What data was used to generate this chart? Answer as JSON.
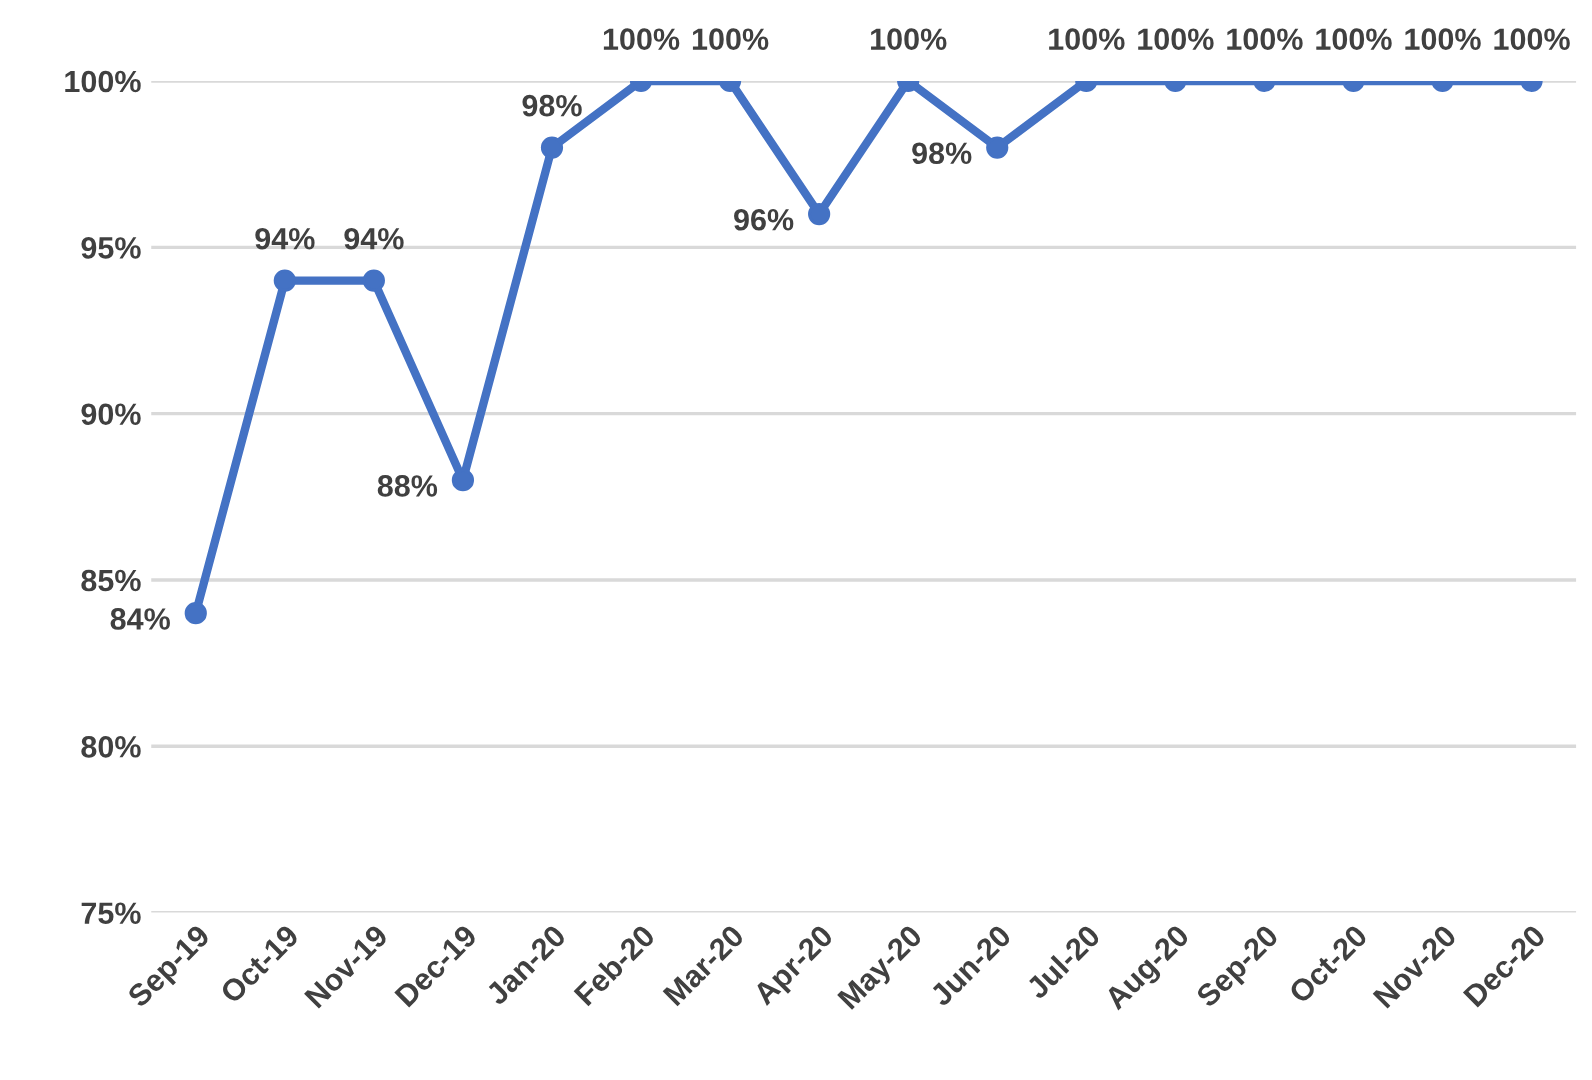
{
  "chart_data": {
    "type": "line",
    "categories": [
      "Sep-19",
      "Oct-19",
      "Nov-19",
      "Dec-19",
      "Jan-20",
      "Feb-20",
      "Mar-20",
      "Apr-20",
      "May-20",
      "Jun-20",
      "Jul-20",
      "Aug-20",
      "Sep-20",
      "Oct-20",
      "Nov-20",
      "Dec-20"
    ],
    "series": [
      {
        "color": "#4472c4",
        "values": [
          84,
          94,
          94,
          88,
          98,
          100,
          100,
          96,
          100,
          98,
          100,
          100,
          100,
          100,
          100,
          100
        ],
        "value_labels": [
          "84%",
          "94%",
          "94%",
          "88%",
          "98%",
          "100%",
          "100%",
          "96%",
          "100%",
          "98%",
          "100%",
          "100%",
          "100%",
          "100%",
          "100%",
          "100%"
        ]
      }
    ],
    "ylim": [
      75,
      100
    ],
    "yticks": [
      {
        "value": 75,
        "label": "75%"
      },
      {
        "value": 80,
        "label": "80%"
      },
      {
        "value": 85,
        "label": "85%"
      },
      {
        "value": 90,
        "label": "90%"
      },
      {
        "value": 95,
        "label": "95%"
      },
      {
        "value": 100,
        "label": "100%"
      }
    ],
    "grid": "y",
    "marker": "circle",
    "line_style": "solid"
  }
}
